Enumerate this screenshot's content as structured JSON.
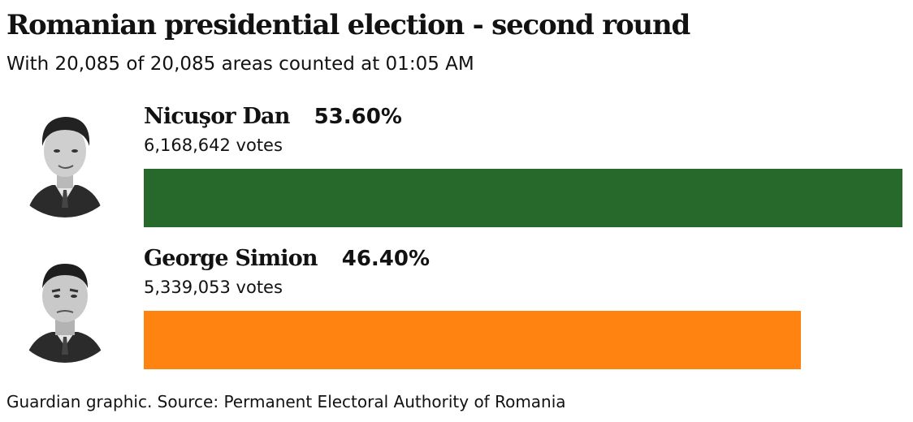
{
  "header": {
    "title": "Romanian presidential election - second round",
    "subtitle": "With 20,085 of 20,085 areas counted at 01:05 AM"
  },
  "footer": {
    "source": "Guardian graphic. Source: Permanent Electoral Authority of Romania"
  },
  "chart_data": {
    "type": "bar",
    "orientation": "horizontal",
    "title": "Romanian presidential election - second round",
    "subtitle": "With 20,085 of 20,085 areas counted at 01:05 AM",
    "categories": [
      "Nicuşor Dan",
      "George Simion"
    ],
    "values": [
      53.6,
      46.4
    ],
    "value_labels": [
      "53.60%",
      "46.40%"
    ],
    "votes": [
      6168642,
      5339053
    ],
    "vote_labels": [
      "6,168,642 votes",
      "5,339,053 votes"
    ],
    "colors": [
      "#27692a",
      "#ff8311"
    ],
    "avatars": [
      "candidate-photo",
      "candidate-photo"
    ],
    "xlim": [
      0,
      53.6
    ],
    "grid": false,
    "legend": "none"
  }
}
